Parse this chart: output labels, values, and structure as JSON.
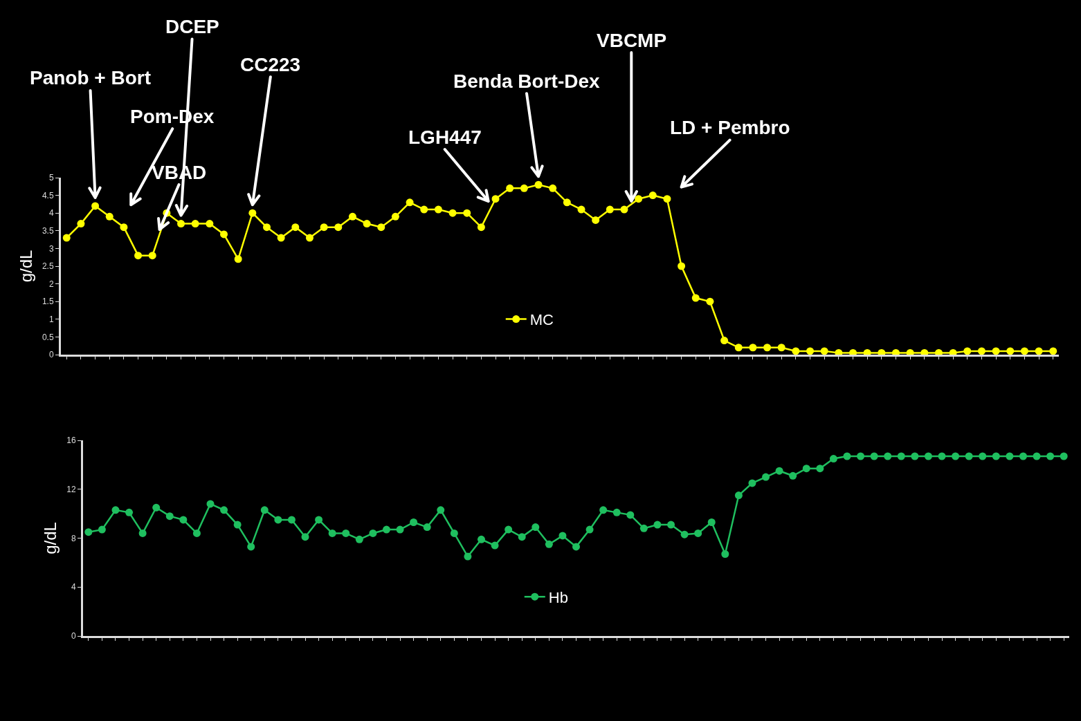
{
  "chart_data": [
    {
      "type": "line",
      "ylabel": "g/dL",
      "categories": [
        null,
        null,
        null,
        null,
        null,
        null,
        null,
        null,
        null,
        null,
        null,
        null,
        null,
        null,
        null,
        null,
        null,
        null,
        null,
        null,
        null,
        null,
        null,
        null,
        null,
        null,
        null,
        null,
        null,
        null,
        null,
        null,
        null,
        null,
        null,
        null,
        null,
        null,
        null,
        null,
        null,
        null,
        null,
        null,
        null,
        null,
        null,
        null,
        null,
        null,
        null,
        null,
        null,
        null,
        null,
        null,
        null,
        null,
        null,
        null,
        null,
        null,
        null,
        null,
        null,
        null,
        null,
        null,
        null,
        null
      ],
      "series": [
        {
          "name": "MC",
          "color": "#ffff00",
          "values": [
            3.3,
            3.7,
            4.2,
            3.9,
            3.6,
            2.8,
            2.8,
            4.0,
            3.7,
            3.7,
            3.7,
            3.4,
            2.7,
            4.0,
            3.6,
            3.3,
            3.6,
            3.3,
            3.6,
            3.6,
            3.9,
            3.7,
            3.6,
            3.9,
            4.3,
            4.1,
            4.1,
            4.0,
            4.0,
            3.6,
            4.4,
            4.7,
            4.7,
            4.8,
            4.7,
            4.3,
            4.1,
            3.8,
            4.1,
            4.1,
            4.4,
            4.5,
            4.4,
            2.5,
            1.6,
            1.5,
            0.4,
            0.2,
            0.2,
            0.2,
            0.2,
            0.1,
            0.1,
            0.1,
            0.05,
            0.05,
            0.05,
            0.05,
            0.05,
            0.05,
            0.05,
            0.05,
            0.05,
            0.1,
            0.1,
            0.1,
            0.1,
            0.1,
            0.1,
            0.1
          ]
        }
      ],
      "ylim": [
        0,
        5
      ],
      "yticks": [
        0,
        0.5,
        1,
        1.5,
        2,
        2.5,
        3,
        3.5,
        4,
        4.5,
        5
      ],
      "tick_labels": "y",
      "legend": "bottom",
      "marker": "circle",
      "line_style": "solid",
      "annotations": [
        "Panob + Bort",
        "Pom-Dex",
        "VBAD",
        "DCEP",
        "CC223",
        "LGH447",
        "Benda Bort-Dex",
        "VBCMP",
        "LD + Pembro"
      ]
    },
    {
      "type": "line",
      "ylabel": "g/dL",
      "categories": [
        null,
        null,
        null,
        null,
        null,
        null,
        null,
        null,
        null,
        null,
        null,
        null,
        null,
        null,
        null,
        null,
        null,
        null,
        null,
        null,
        null,
        null,
        null,
        null,
        null,
        null,
        null,
        null,
        null,
        null,
        null,
        null,
        null,
        null,
        null,
        null,
        null,
        null,
        null,
        null,
        null,
        null,
        null,
        null,
        null,
        null,
        null,
        null,
        null,
        null,
        null,
        null,
        null,
        null,
        null,
        null,
        null,
        null,
        null,
        null,
        null,
        null,
        null,
        null,
        null,
        null,
        null,
        null,
        null,
        null,
        null,
        null,
        null
      ],
      "series": [
        {
          "name": "Hb",
          "color": "#1fbf5f",
          "values": [
            8.5,
            8.7,
            10.3,
            10.1,
            8.4,
            10.5,
            9.8,
            9.5,
            8.4,
            10.8,
            10.3,
            9.1,
            7.3,
            10.3,
            9.5,
            9.5,
            8.1,
            9.5,
            8.4,
            8.4,
            7.9,
            8.4,
            8.7,
            8.7,
            9.3,
            8.9,
            10.3,
            8.4,
            6.5,
            7.9,
            7.4,
            8.7,
            8.1,
            8.9,
            7.5,
            8.2,
            7.3,
            8.7,
            10.3,
            10.1,
            9.9,
            8.8,
            9.1,
            9.1,
            8.3,
            8.4,
            9.3,
            6.7,
            11.5,
            12.5,
            13.0,
            13.5,
            13.1,
            13.7,
            13.7,
            14.5,
            14.7,
            14.7,
            14.7,
            14.7,
            14.7,
            14.7,
            14.7,
            14.7,
            14.7,
            14.7,
            14.7,
            14.7,
            14.7,
            14.7,
            14.7,
            14.7,
            14.7
          ]
        }
      ],
      "ylim": [
        0,
        16
      ],
      "yticks": [
        0,
        4,
        8,
        12,
        16
      ],
      "tick_labels": "y",
      "legend": "bottom",
      "marker": "circle",
      "line_style": "solid"
    }
  ]
}
